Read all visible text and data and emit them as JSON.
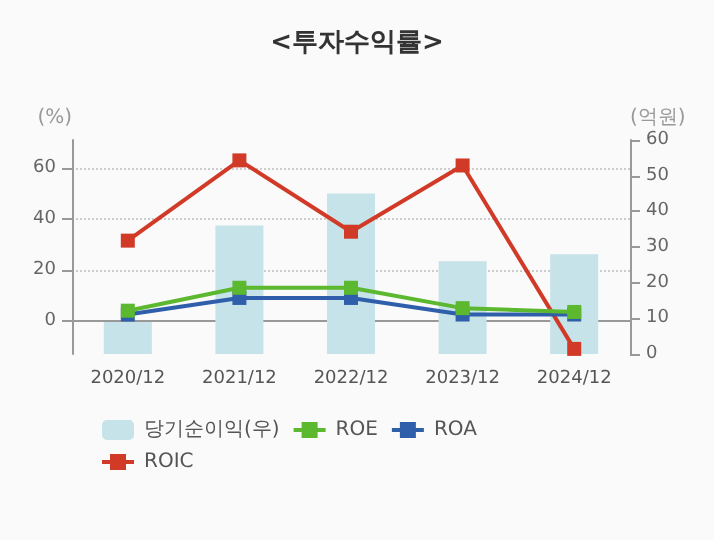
{
  "chart_data": {
    "type": "bar",
    "title": "<투자수익률>",
    "ylabel": "(%)",
    "y2label": "(억원)",
    "categories": [
      "2020/12",
      "2021/12",
      "2022/12",
      "2023/12",
      "2024/12"
    ],
    "series": [
      {
        "name": "당기순이익(우)",
        "axis": "y2",
        "color": "#c5e3e8",
        "values": [
          9,
          36,
          45,
          26,
          28
        ]
      },
      {
        "name": "ROE",
        "type": "line",
        "color": "#5cb82f",
        "values": [
          4,
          13,
          13,
          5,
          3.5
        ]
      },
      {
        "name": "ROA",
        "type": "line",
        "color": "#2f5faa",
        "values": [
          2.5,
          9,
          9,
          2.5,
          2.5
        ]
      },
      {
        "name": "ROIC",
        "type": "line",
        "color": "#d13a27",
        "values": [
          31.5,
          63,
          35,
          61,
          -11
        ]
      }
    ],
    "ylim": [
      -13,
      71
    ],
    "yticks": [
      0,
      20,
      40,
      60
    ],
    "y2lim": [
      0,
      60
    ],
    "y2ticks": [
      0,
      10,
      20,
      30,
      40,
      50,
      60
    ],
    "grid": "y",
    "legend": "bottom",
    "marker": "square"
  }
}
